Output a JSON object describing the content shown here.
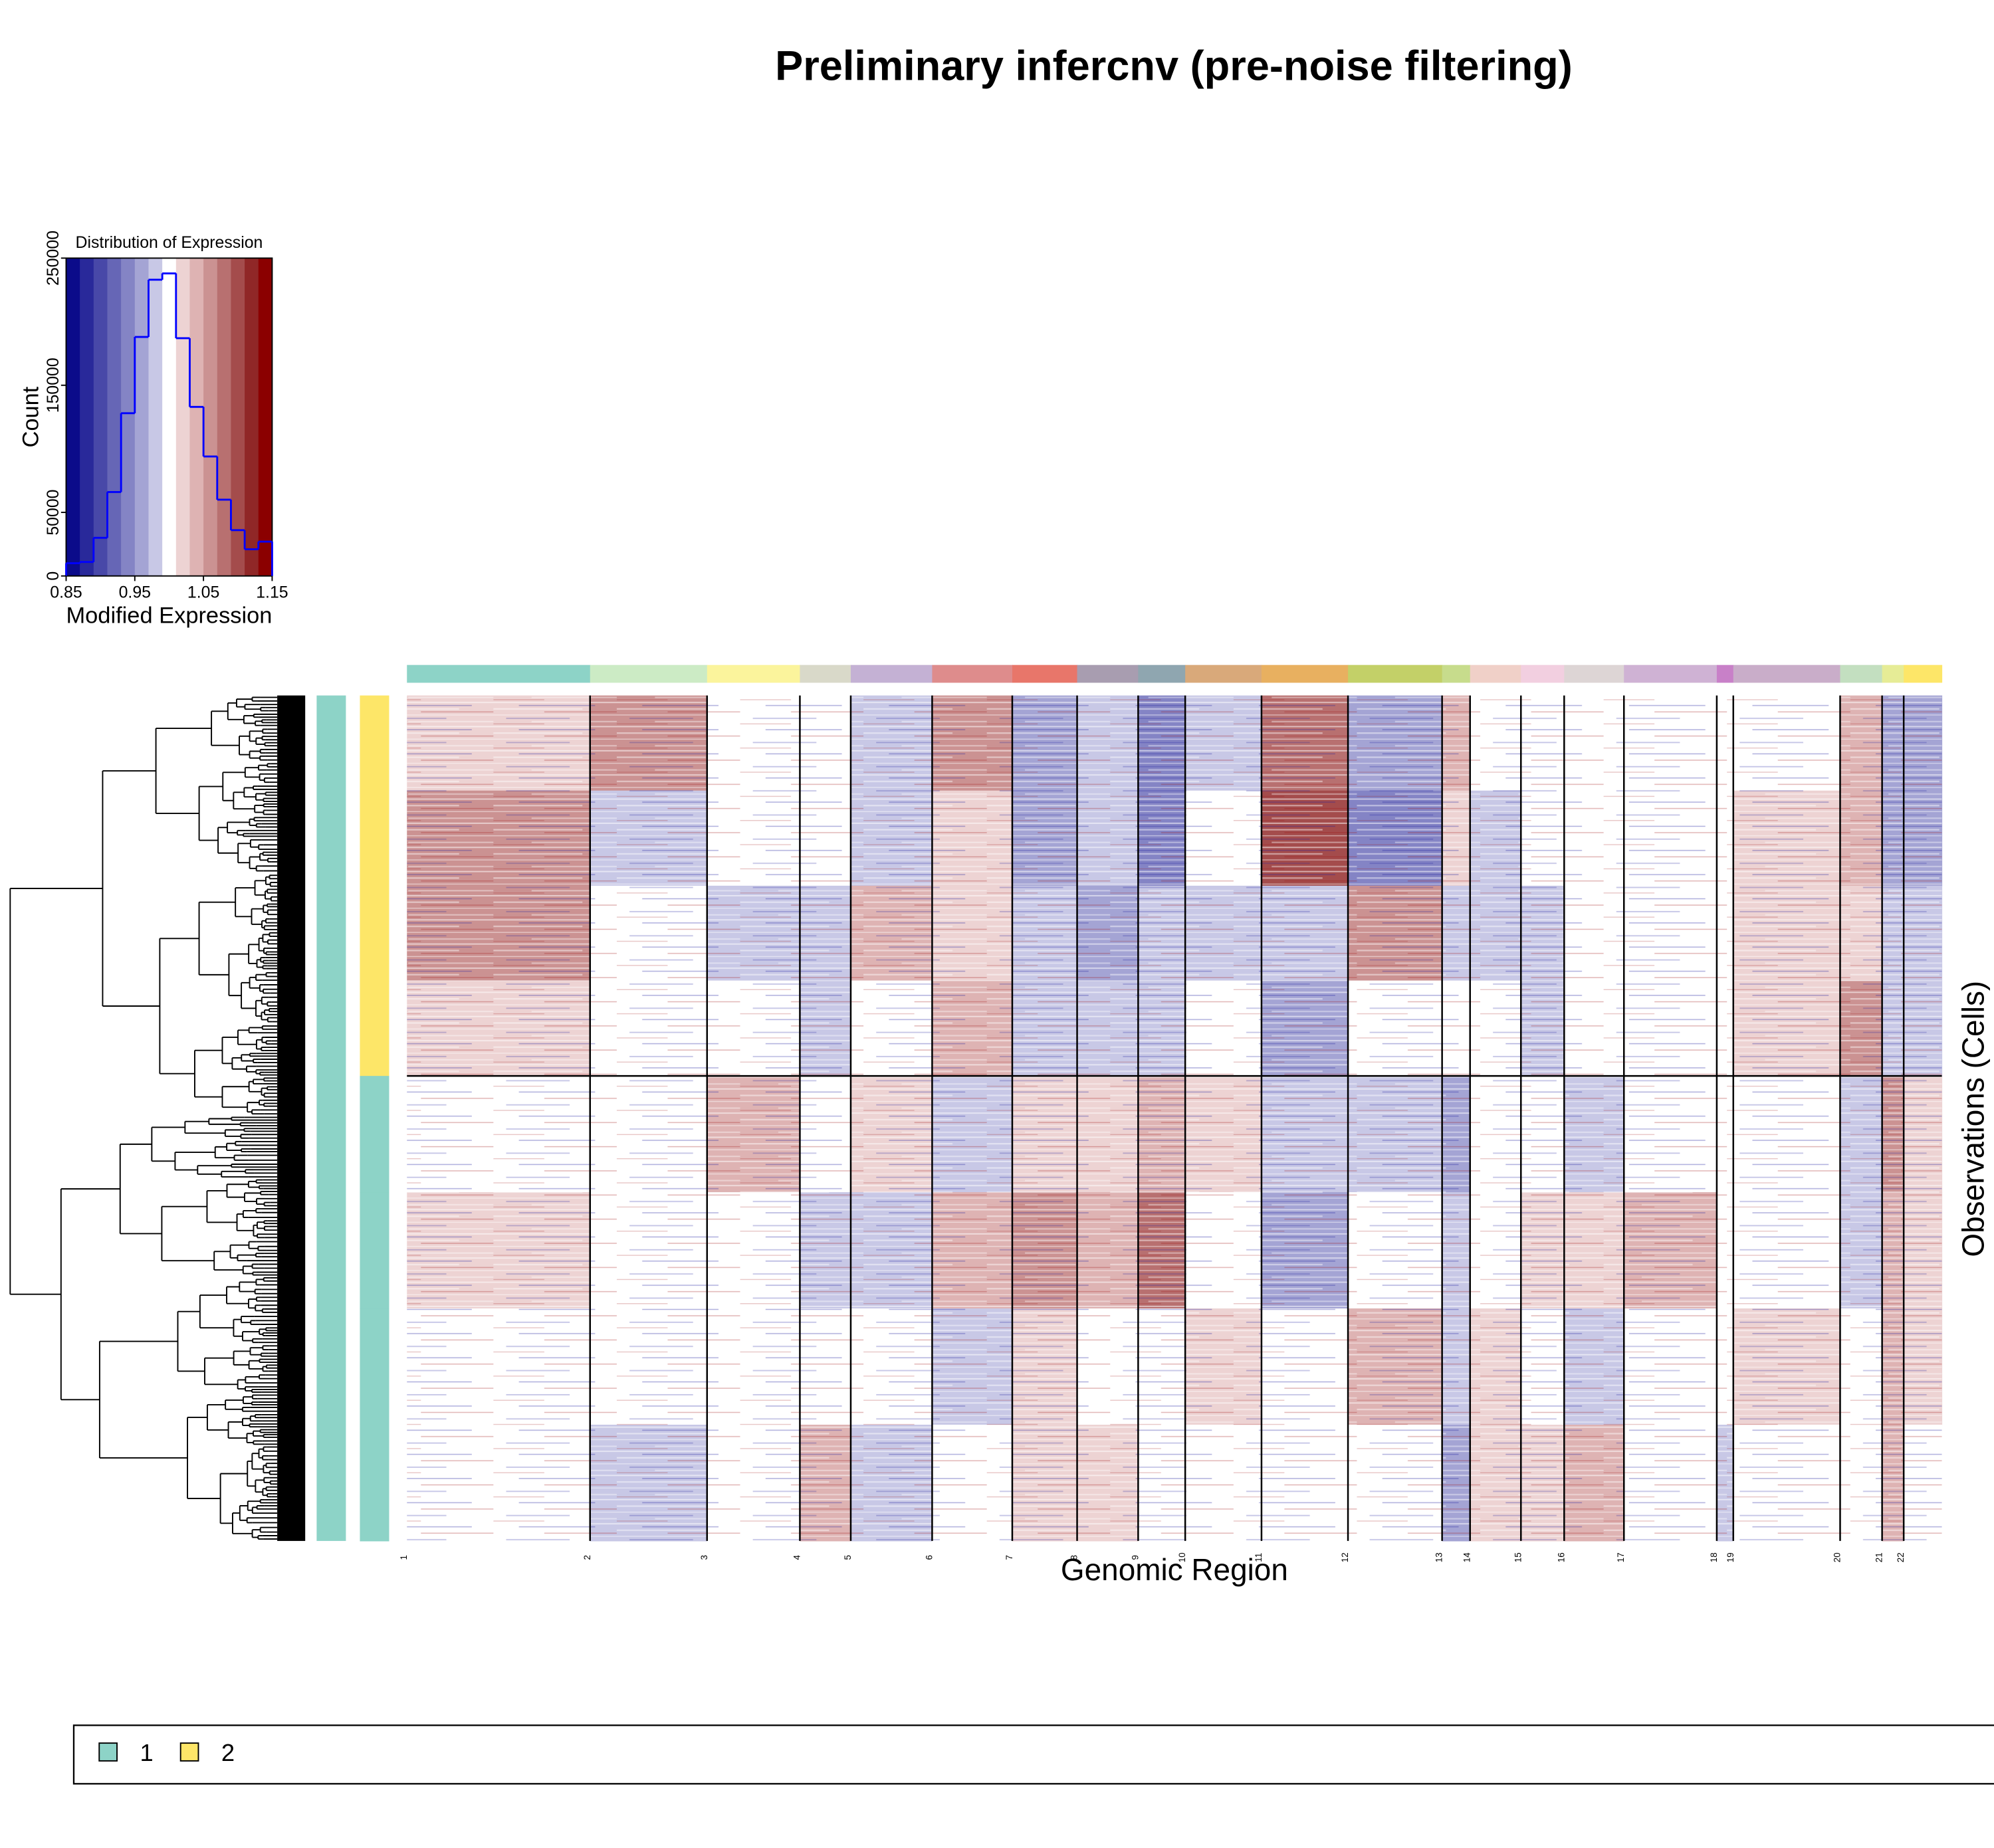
{
  "title": "Preliminary infercnv (pre-noise filtering)",
  "chart_data": [
    {
      "type": "histogram",
      "title": "Distribution of Expression",
      "x_label": "Modified Expression",
      "y_label": "Count",
      "bins": [
        0.85,
        0.87,
        0.89,
        0.91,
        0.93,
        0.95,
        0.97,
        0.99,
        1.01,
        1.03,
        1.05,
        1.07,
        1.09,
        1.11,
        1.13,
        1.15
      ],
      "values": [
        10000,
        11000,
        30000,
        66000,
        128000,
        188000,
        233000,
        238000,
        187000,
        133000,
        94000,
        60000,
        36000,
        21000,
        27000
      ],
      "color": "#0000ff",
      "colormap": [
        "#0b0b8a",
        "#29299a",
        "#4848a8",
        "#6666b6",
        "#8484c5",
        "#a4a4d4",
        "#c8c8e6",
        "#ffffff",
        "#edd3d3",
        "#deb3b3",
        "#cb9292",
        "#b87070",
        "#a44c4c",
        "#902727",
        "#8b0000"
      ],
      "xlim": [
        0.85,
        1.15
      ],
      "xticks": [
        0.85,
        0.95,
        1.05,
        1.15
      ],
      "ylim": [
        0,
        250000
      ],
      "yticks": [
        0,
        50000,
        150000,
        250000
      ]
    },
    {
      "type": "heatmap",
      "x_label": "Genomic Region",
      "y_label": "Observations (Cells)",
      "xlim": [
        0,
        6035
      ],
      "xticks": [
        {
          "value": 0,
          "label": "1"
        },
        {
          "value": 720,
          "label": "2"
        },
        {
          "value": 1180,
          "label": "3"
        },
        {
          "value": 1545,
          "label": "4"
        },
        {
          "value": 1745,
          "label": "5"
        },
        {
          "value": 2065,
          "label": "6"
        },
        {
          "value": 2380,
          "label": "7"
        },
        {
          "value": 2635,
          "label": "8"
        },
        {
          "value": 2875,
          "label": "9"
        },
        {
          "value": 3060,
          "label": "10"
        },
        {
          "value": 3360,
          "label": "11"
        },
        {
          "value": 3700,
          "label": "12"
        },
        {
          "value": 4070,
          "label": "13"
        },
        {
          "value": 4180,
          "label": "14"
        },
        {
          "value": 4380,
          "label": "15"
        },
        {
          "value": 4550,
          "label": "16"
        },
        {
          "value": 4785,
          "label": "17"
        },
        {
          "value": 5150,
          "label": "18"
        },
        {
          "value": 5215,
          "label": "19"
        },
        {
          "value": 5635,
          "label": "20"
        },
        {
          "value": 5800,
          "label": "21"
        },
        {
          "value": 5885,
          "label": "22"
        }
      ],
      "chromosome_colors": [
        "#8dd3c7",
        "#ccebc5",
        "#fbf49c",
        "#d9d9c9",
        "#c4b1d4",
        "#de8c8c",
        "#e8766a",
        "#a89db0",
        "#8fa6b0",
        "#d9a97a",
        "#e8b060",
        "#c3d068",
        "#c7dc8c",
        "#f0d0c8",
        "#f2cfe0",
        "#ddd5d5",
        "#cfb2d4",
        "#c880c8",
        "#c9adc9",
        "#c3dfc0",
        "#e6ec96",
        "#fde668"
      ],
      "groups": [
        {
          "name": "1",
          "color": "#8dd3c7",
          "cells": 220
        },
        {
          "name": "2",
          "color": "#fde668",
          "cells": 180
        }
      ],
      "row_groups": [
        "2",
        "2",
        "2",
        "2",
        "1",
        "1",
        "1",
        "1"
      ],
      "values": [
        [
          1.02,
          1.05,
          0.99,
          1.0,
          0.98,
          1.06,
          0.95,
          0.97,
          0.94,
          0.98,
          1.08,
          0.96,
          1.03,
          1.0,
          0.99,
          1.0,
          1.0,
          1.0,
          1.0,
          1.04,
          0.96,
          0.95
        ],
        [
          1.06,
          0.98,
          0.99,
          0.99,
          0.98,
          1.02,
          0.96,
          0.97,
          0.94,
          0.99,
          1.09,
          0.94,
          1.02,
          0.98,
          0.99,
          1.0,
          1.0,
          1.0,
          1.02,
          1.03,
          0.95,
          0.96
        ],
        [
          1.06,
          0.99,
          0.98,
          0.98,
          1.04,
          1.02,
          0.97,
          0.95,
          0.97,
          0.97,
          0.98,
          1.05,
          0.98,
          0.97,
          0.98,
          1.0,
          0.99,
          1.0,
          1.01,
          1.01,
          0.97,
          0.97
        ],
        [
          1.01,
          1.0,
          0.99,
          0.97,
          0.99,
          1.04,
          0.98,
          0.97,
          0.98,
          0.99,
          0.96,
          1.0,
          1.0,
          1.0,
          0.97,
          0.99,
          1.0,
          1.0,
          1.01,
          1.05,
          0.97,
          0.97
        ],
        [
          0.99,
          0.99,
          1.03,
          1.0,
          1.01,
          0.98,
          1.02,
          1.02,
          1.04,
          1.01,
          0.97,
          0.98,
          0.96,
          1.0,
          0.99,
          0.98,
          1.0,
          0.99,
          1.0,
          0.98,
          1.05,
          1.02
        ],
        [
          1.01,
          0.99,
          1.0,
          0.98,
          0.98,
          1.03,
          1.05,
          1.04,
          1.07,
          1.0,
          0.96,
          0.99,
          0.97,
          0.99,
          1.01,
          1.02,
          1.04,
          0.99,
          0.99,
          0.98,
          1.03,
          1.02
        ],
        [
          1.0,
          1.0,
          0.99,
          1.0,
          0.99,
          0.98,
          1.02,
          0.99,
          1.0,
          1.02,
          0.99,
          1.03,
          0.97,
          1.01,
          0.99,
          0.98,
          0.99,
          0.99,
          1.02,
          1.0,
          1.03,
          1.01
        ],
        [
          0.99,
          0.98,
          0.99,
          1.04,
          0.98,
          1.0,
          1.02,
          1.01,
          0.99,
          0.99,
          0.99,
          0.99,
          0.96,
          1.02,
          1.02,
          1.03,
          0.99,
          0.98,
          1.0,
          1.0,
          1.04,
          0.99
        ]
      ]
    }
  ]
}
